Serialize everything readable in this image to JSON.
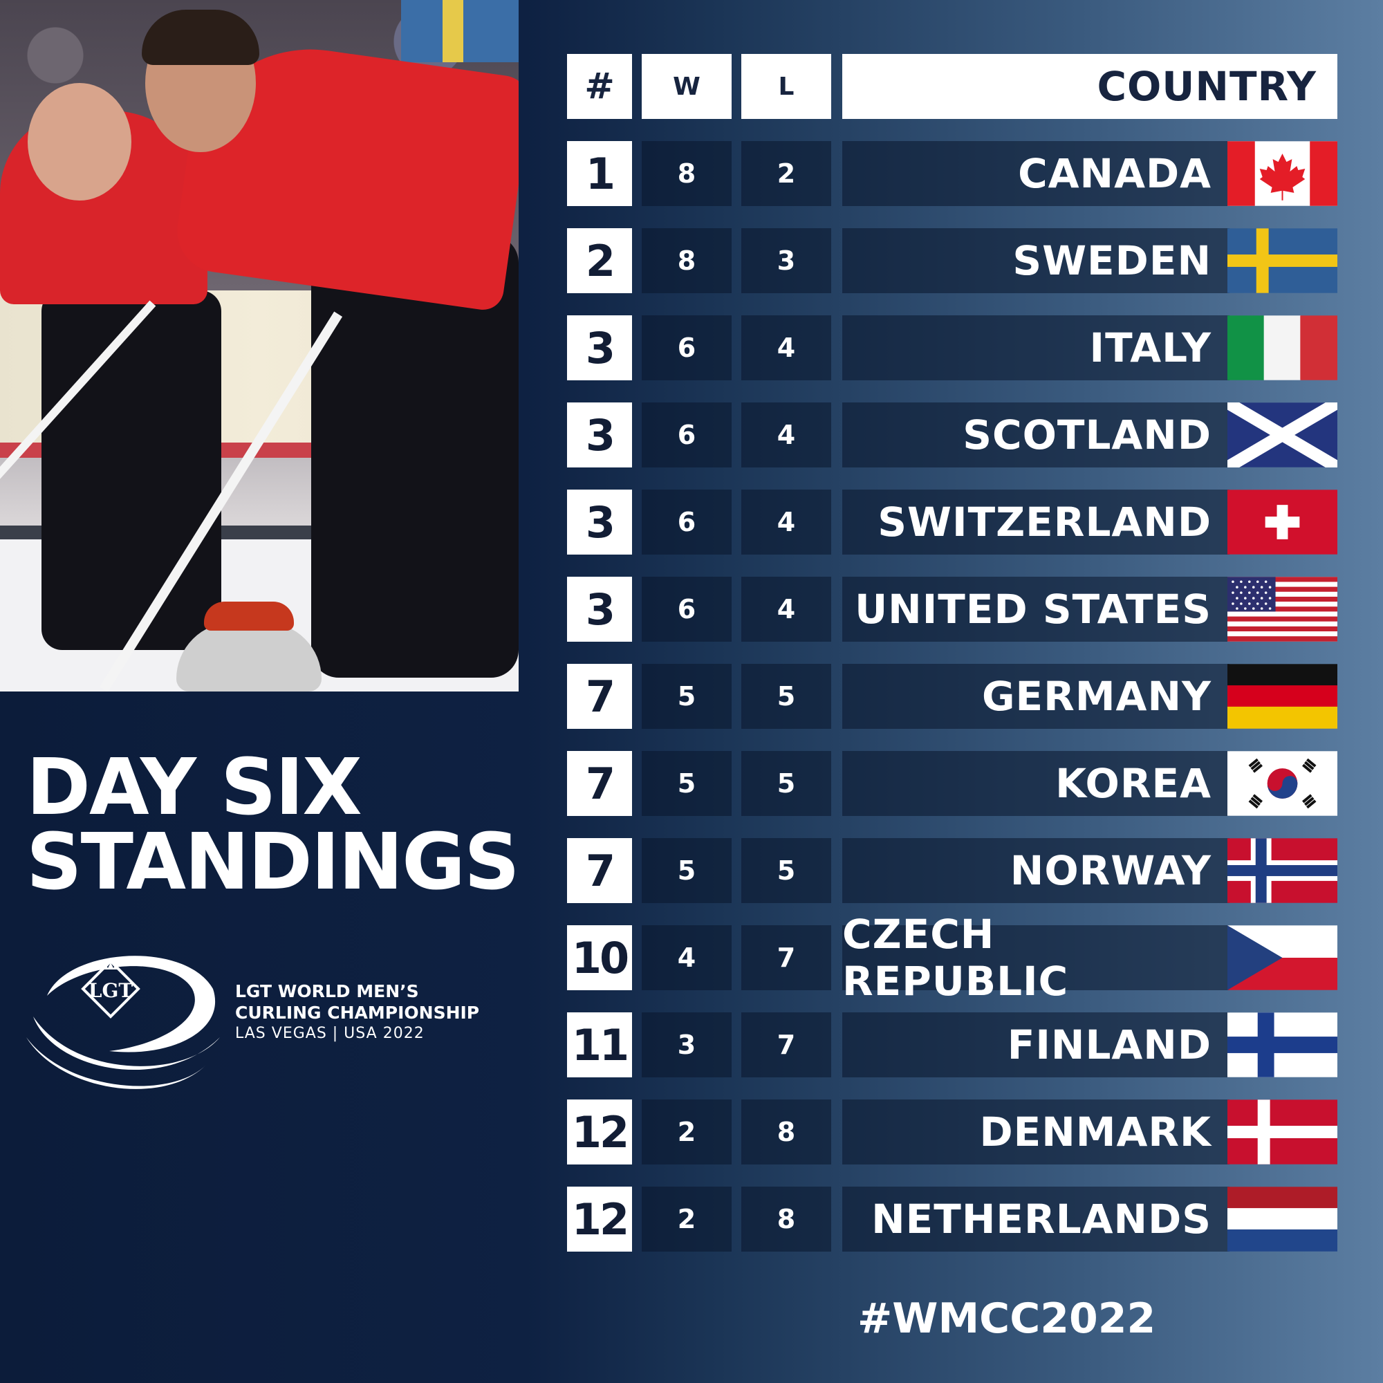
{
  "title": {
    "line1": "DAY SIX",
    "line2": "STANDINGS"
  },
  "event": {
    "logo_text": "LGT",
    "line1": "LGT WORLD MEN’S",
    "line2": "CURLING CHAMPIONSHIP",
    "line3": "LAS VEGAS | USA 2022"
  },
  "table": {
    "headers": {
      "rank": "#",
      "wins": "W",
      "losses": "L",
      "country": "COUNTRY"
    },
    "rows": [
      {
        "rank": "1",
        "w": "8",
        "l": "2",
        "country": "CANADA",
        "flag": "canada-flag"
      },
      {
        "rank": "2",
        "w": "8",
        "l": "3",
        "country": "SWEDEN",
        "flag": "sweden-flag"
      },
      {
        "rank": "3",
        "w": "6",
        "l": "4",
        "country": "ITALY",
        "flag": "italy-flag"
      },
      {
        "rank": "3",
        "w": "6",
        "l": "4",
        "country": "SCOTLAND",
        "flag": "scotland-flag"
      },
      {
        "rank": "3",
        "w": "6",
        "l": "4",
        "country": "SWITZERLAND",
        "flag": "switzerland-flag"
      },
      {
        "rank": "3",
        "w": "6",
        "l": "4",
        "country": "UNITED STATES",
        "flag": "united-states-flag"
      },
      {
        "rank": "7",
        "w": "5",
        "l": "5",
        "country": "GERMANY",
        "flag": "germany-flag"
      },
      {
        "rank": "7",
        "w": "5",
        "l": "5",
        "country": "KOREA",
        "flag": "korea-flag"
      },
      {
        "rank": "7",
        "w": "5",
        "l": "5",
        "country": "NORWAY",
        "flag": "norway-flag"
      },
      {
        "rank": "10",
        "w": "4",
        "l": "7",
        "country": "CZECH REPUBLIC",
        "flag": "czech-republic-flag"
      },
      {
        "rank": "11",
        "w": "3",
        "l": "7",
        "country": "FINLAND",
        "flag": "finland-flag"
      },
      {
        "rank": "12",
        "w": "2",
        "l": "8",
        "country": "DENMARK",
        "flag": "denmark-flag"
      },
      {
        "rank": "12",
        "w": "2",
        "l": "8",
        "country": "NETHERLANDS",
        "flag": "netherlands-flag"
      }
    ]
  },
  "hashtag": "#WMCC2022",
  "colors": {
    "navy": "#0c1c3a",
    "steel": "#5c7ea2",
    "canada_red": "#e41d27",
    "sweden_blue": "#2f5e97",
    "sweden_yellow": "#f2c516"
  }
}
